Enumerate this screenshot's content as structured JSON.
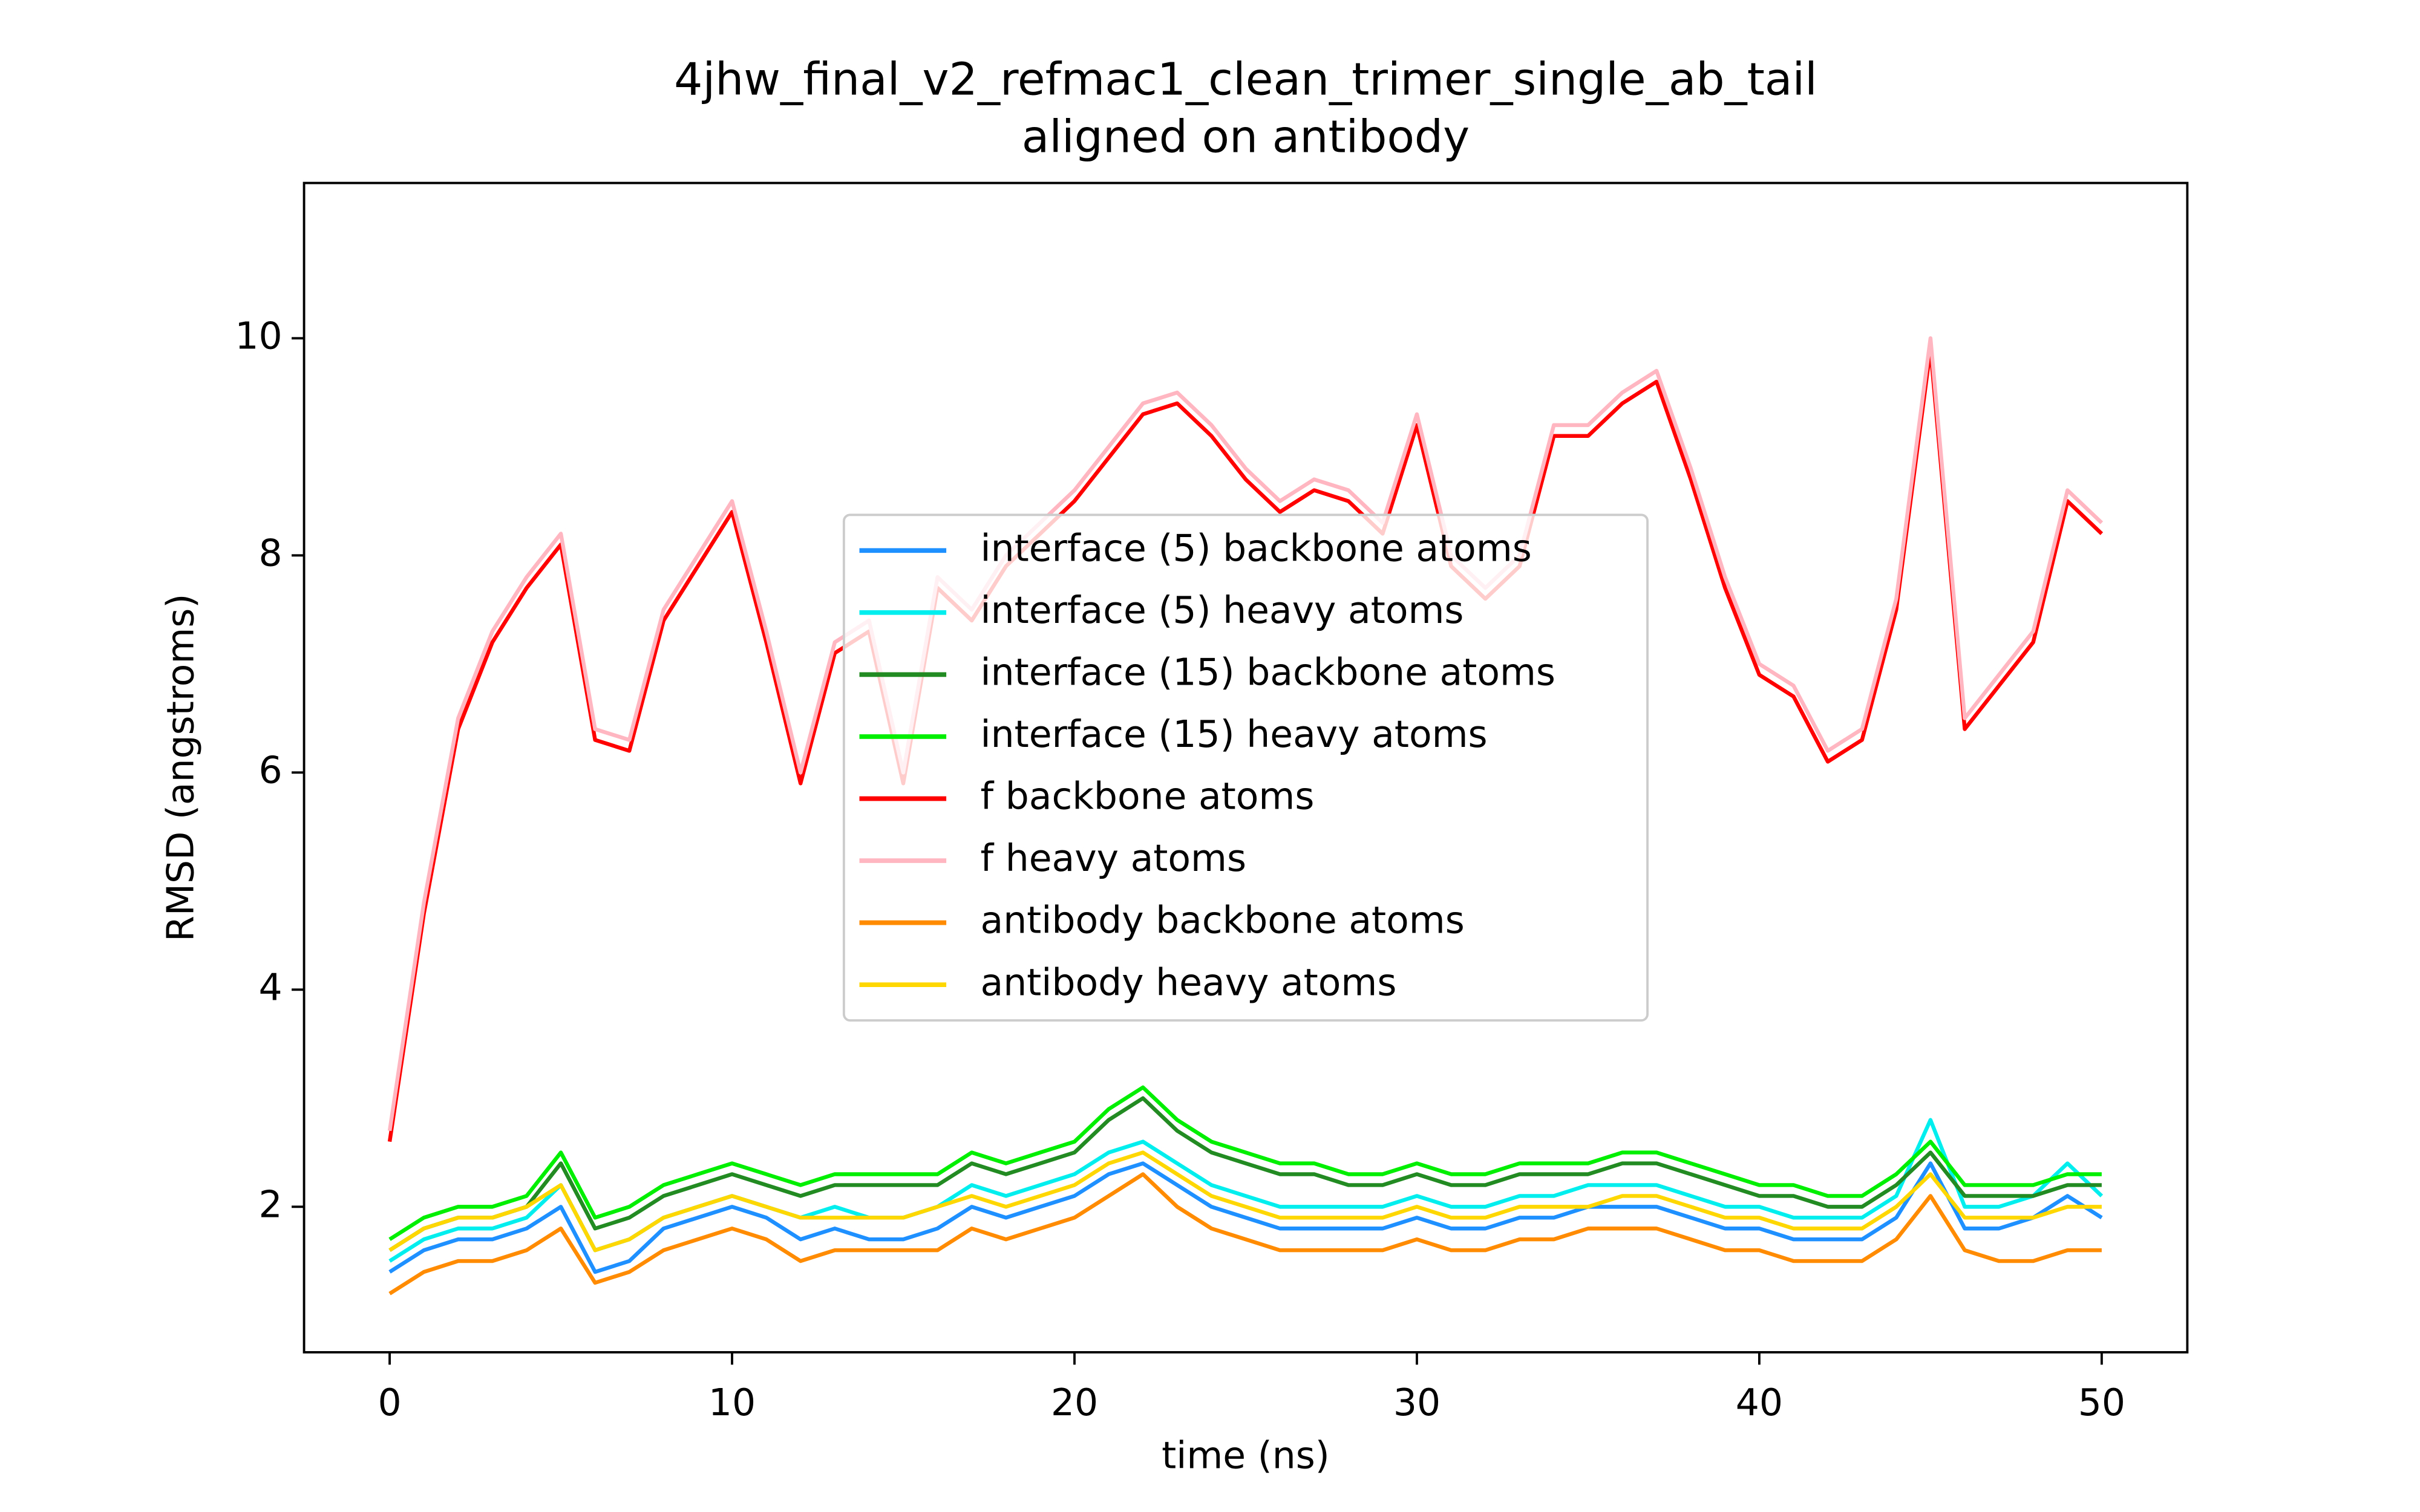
{
  "chart_data": {
    "type": "line",
    "title": "4jhw_final_v2_refmac1_clean_trimer_single_ab_tail",
    "subtitle": "aligned on antibody",
    "x_label": "time (ns)",
    "y_label": "RMSD (angstroms)",
    "x": [
      0,
      1,
      2,
      3,
      4,
      5,
      6,
      7,
      8,
      9,
      10,
      11,
      12,
      13,
      14,
      15,
      16,
      17,
      18,
      19,
      20,
      21,
      22,
      23,
      24,
      25,
      26,
      27,
      28,
      29,
      30,
      31,
      32,
      33,
      34,
      35,
      36,
      37,
      38,
      39,
      40,
      41,
      42,
      43,
      44,
      45,
      46,
      47,
      48,
      49,
      50
    ],
    "series": [
      {
        "name": "interface (5) backbone atoms",
        "color": "#1e90ff",
        "values": [
          1.4,
          1.6,
          1.7,
          1.7,
          1.8,
          2.0,
          1.4,
          1.5,
          1.8,
          1.9,
          2.0,
          1.9,
          1.7,
          1.8,
          1.7,
          1.7,
          1.8,
          2.0,
          1.9,
          2.0,
          2.1,
          2.3,
          2.4,
          2.2,
          2.0,
          1.9,
          1.8,
          1.8,
          1.8,
          1.8,
          1.9,
          1.8,
          1.8,
          1.9,
          1.9,
          2.0,
          2.0,
          2.0,
          1.9,
          1.8,
          1.8,
          1.7,
          1.7,
          1.7,
          1.9,
          2.4,
          1.8,
          1.8,
          1.9,
          2.1,
          1.9
        ]
      },
      {
        "name": "interface (5) heavy atoms",
        "color": "#00eeee",
        "values": [
          1.5,
          1.7,
          1.8,
          1.8,
          1.9,
          2.2,
          1.6,
          1.7,
          1.9,
          2.0,
          2.1,
          2.0,
          1.9,
          2.0,
          1.9,
          1.9,
          2.0,
          2.2,
          2.1,
          2.2,
          2.3,
          2.5,
          2.6,
          2.4,
          2.2,
          2.1,
          2.0,
          2.0,
          2.0,
          2.0,
          2.1,
          2.0,
          2.0,
          2.1,
          2.1,
          2.2,
          2.2,
          2.2,
          2.1,
          2.0,
          2.0,
          1.9,
          1.9,
          1.9,
          2.1,
          2.8,
          2.0,
          2.0,
          2.1,
          2.4,
          2.1
        ]
      },
      {
        "name": "interface (15) backbone atoms",
        "color": "#228b22",
        "values": [
          1.6,
          1.8,
          1.9,
          1.9,
          2.0,
          2.4,
          1.8,
          1.9,
          2.1,
          2.2,
          2.3,
          2.2,
          2.1,
          2.2,
          2.2,
          2.2,
          2.2,
          2.4,
          2.3,
          2.4,
          2.5,
          2.8,
          3.0,
          2.7,
          2.5,
          2.4,
          2.3,
          2.3,
          2.2,
          2.2,
          2.3,
          2.2,
          2.2,
          2.3,
          2.3,
          2.3,
          2.4,
          2.4,
          2.3,
          2.2,
          2.1,
          2.1,
          2.0,
          2.0,
          2.2,
          2.5,
          2.1,
          2.1,
          2.1,
          2.2,
          2.2
        ]
      },
      {
        "name": "interface (15) heavy atoms",
        "color": "#00ee00",
        "values": [
          1.7,
          1.9,
          2.0,
          2.0,
          2.1,
          2.5,
          1.9,
          2.0,
          2.2,
          2.3,
          2.4,
          2.3,
          2.2,
          2.3,
          2.3,
          2.3,
          2.3,
          2.5,
          2.4,
          2.5,
          2.6,
          2.9,
          3.1,
          2.8,
          2.6,
          2.5,
          2.4,
          2.4,
          2.3,
          2.3,
          2.4,
          2.3,
          2.3,
          2.4,
          2.4,
          2.4,
          2.5,
          2.5,
          2.4,
          2.3,
          2.2,
          2.2,
          2.1,
          2.1,
          2.3,
          2.6,
          2.2,
          2.2,
          2.2,
          2.3,
          2.3
        ]
      },
      {
        "name": "f backbone atoms",
        "color": "#ff0000",
        "values": [
          2.6,
          4.7,
          6.4,
          7.2,
          7.7,
          8.1,
          6.3,
          6.2,
          7.4,
          7.9,
          8.4,
          7.2,
          5.9,
          7.1,
          7.3,
          5.9,
          7.7,
          7.4,
          7.9,
          8.2,
          8.5,
          8.9,
          9.3,
          9.4,
          9.1,
          8.7,
          8.4,
          8.6,
          8.5,
          8.2,
          9.2,
          7.9,
          7.6,
          7.9,
          9.1,
          9.1,
          9.4,
          9.6,
          8.7,
          7.7,
          6.9,
          6.7,
          6.1,
          6.3,
          7.5,
          9.9,
          6.4,
          6.8,
          7.2,
          8.5,
          8.2
        ]
      },
      {
        "name": "f heavy atoms",
        "color": "#ffb6c1",
        "values": [
          2.7,
          4.8,
          6.5,
          7.3,
          7.8,
          8.2,
          6.4,
          6.3,
          7.5,
          8.0,
          8.5,
          7.3,
          6.0,
          7.2,
          7.4,
          6.0,
          7.8,
          7.5,
          8.0,
          8.3,
          8.6,
          9.0,
          9.4,
          9.5,
          9.2,
          8.8,
          8.5,
          8.7,
          8.6,
          8.3,
          9.3,
          8.0,
          7.7,
          8.0,
          9.2,
          9.2,
          9.5,
          9.7,
          8.8,
          7.8,
          7.0,
          6.8,
          6.2,
          6.4,
          7.6,
          10.0,
          6.5,
          6.9,
          7.3,
          8.6,
          8.3
        ]
      },
      {
        "name": "antibody backbone atoms",
        "color": "#ff8c00",
        "values": [
          1.2,
          1.4,
          1.5,
          1.5,
          1.6,
          1.8,
          1.3,
          1.4,
          1.6,
          1.7,
          1.8,
          1.7,
          1.5,
          1.6,
          1.6,
          1.6,
          1.6,
          1.8,
          1.7,
          1.8,
          1.9,
          2.1,
          2.3,
          2.0,
          1.8,
          1.7,
          1.6,
          1.6,
          1.6,
          1.6,
          1.7,
          1.6,
          1.6,
          1.7,
          1.7,
          1.8,
          1.8,
          1.8,
          1.7,
          1.6,
          1.6,
          1.5,
          1.5,
          1.5,
          1.7,
          2.1,
          1.6,
          1.5,
          1.5,
          1.6,
          1.6
        ]
      },
      {
        "name": "antibody heavy atoms",
        "color": "#ffd700",
        "values": [
          1.6,
          1.8,
          1.9,
          1.9,
          2.0,
          2.2,
          1.6,
          1.7,
          1.9,
          2.0,
          2.1,
          2.0,
          1.9,
          1.9,
          1.9,
          1.9,
          2.0,
          2.1,
          2.0,
          2.1,
          2.2,
          2.4,
          2.5,
          2.3,
          2.1,
          2.0,
          1.9,
          1.9,
          1.9,
          1.9,
          2.0,
          1.9,
          1.9,
          2.0,
          2.0,
          2.0,
          2.1,
          2.1,
          2.0,
          1.9,
          1.9,
          1.8,
          1.8,
          1.8,
          2.0,
          2.3,
          1.9,
          1.9,
          1.9,
          2.0,
          2.0
        ]
      }
    ],
    "xlim": [
      -2.5,
      52.5
    ],
    "xticks": [
      0,
      10,
      20,
      30,
      40,
      50
    ],
    "ylim": [
      0.66,
      11.43
    ],
    "yticks": [
      2,
      4,
      6,
      8,
      10
    ],
    "grid": false,
    "legend": "center"
  }
}
